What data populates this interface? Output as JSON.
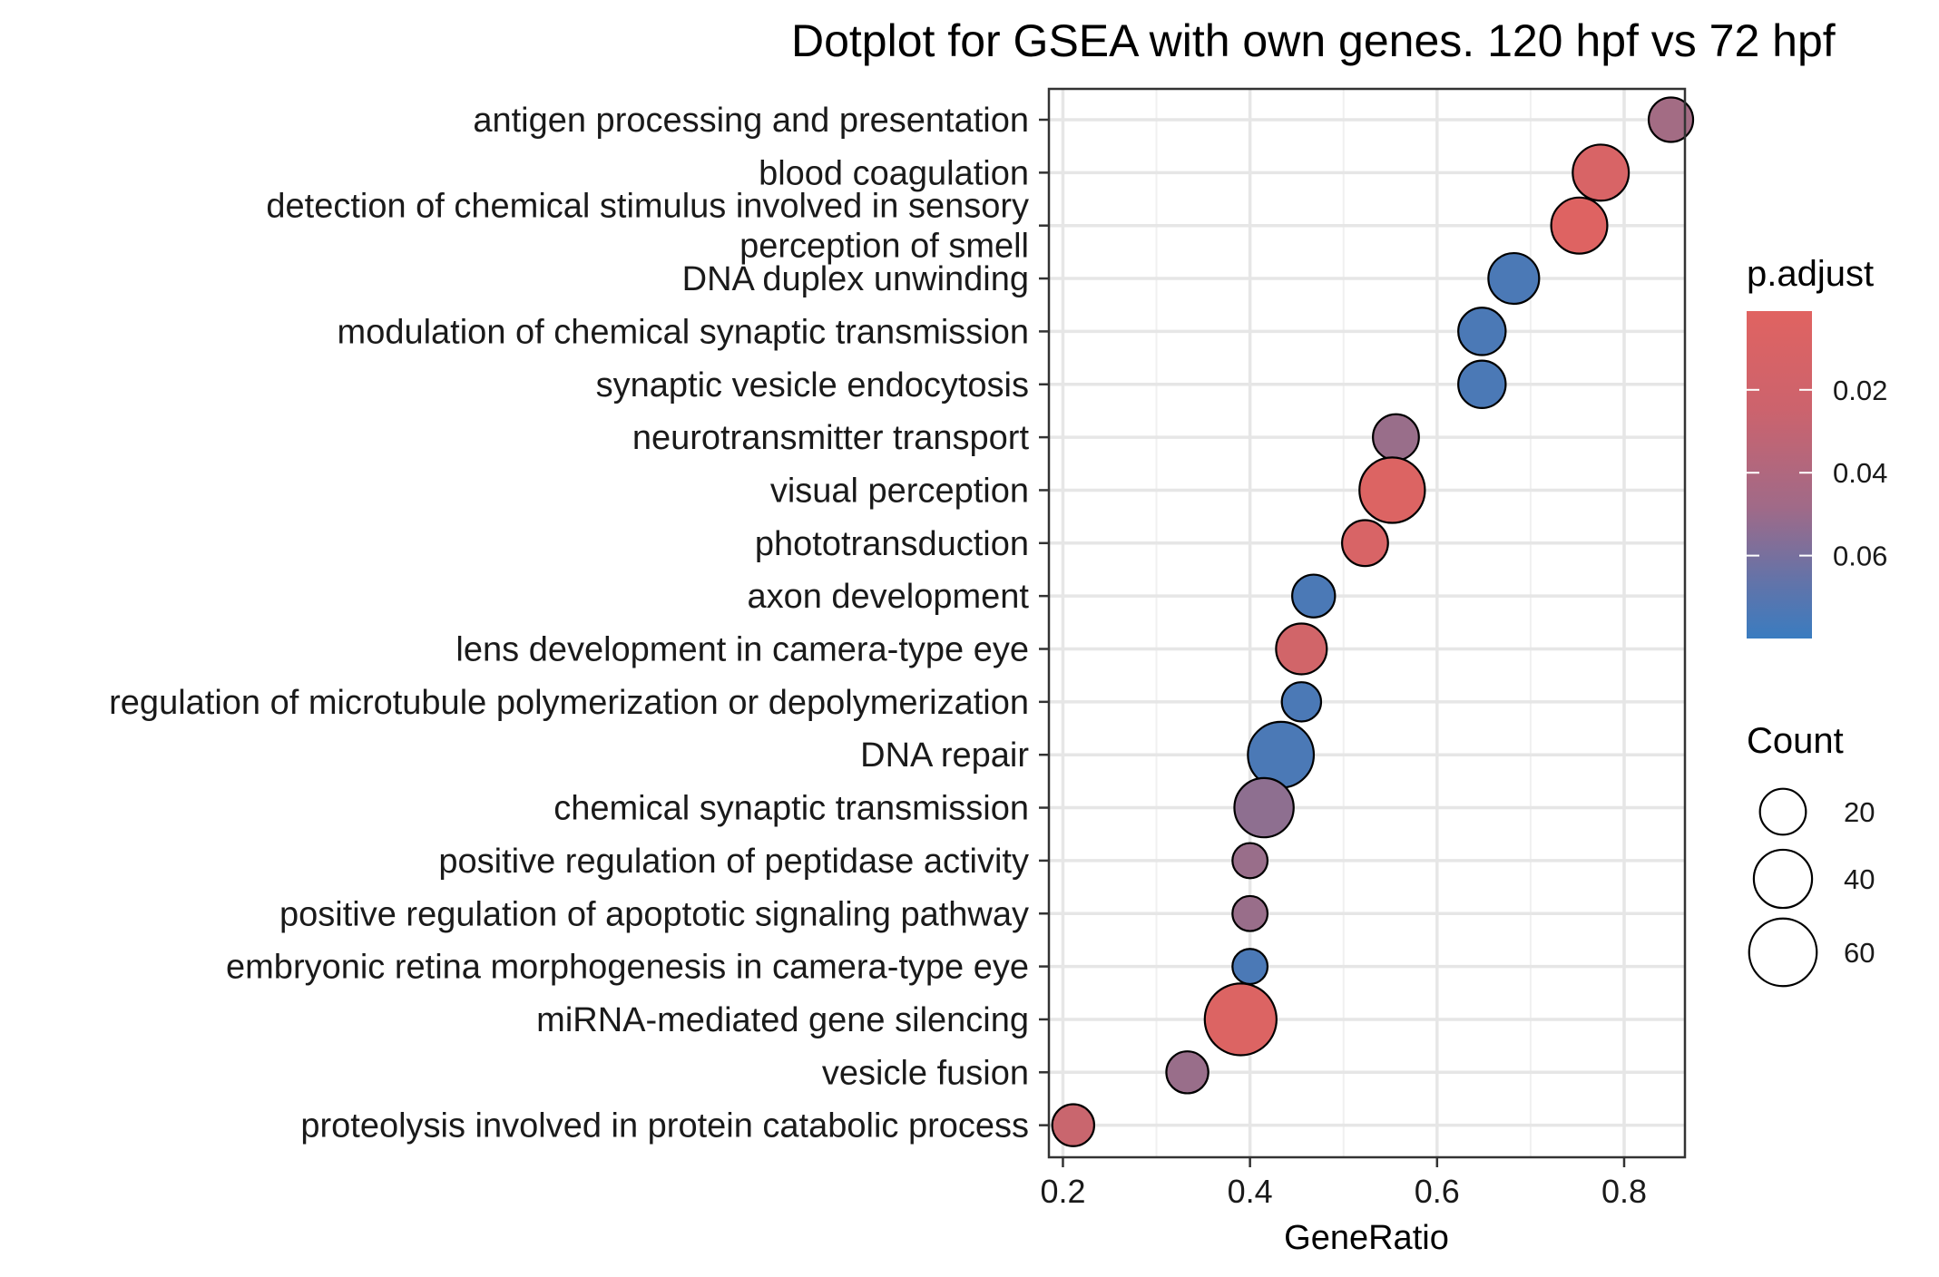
{
  "chart_data": {
    "type": "scatter",
    "title": "Dotplot for GSEA with own genes. 120 hpf vs 72 hpf",
    "xlabel": "GeneRatio",
    "ylabel": "",
    "xlim": [
      0.185,
      0.865
    ],
    "xticks": [
      "0.2",
      "0.4",
      "0.6",
      "0.8"
    ],
    "grid": true,
    "legend_position": "right",
    "colors": {
      "low_padj": "#E06361",
      "high_padj": "#3A7CC0"
    },
    "legend": {
      "color_title": "p.adjust",
      "color_ticks": [
        "0.02",
        "0.04",
        "0.06"
      ],
      "color_range": [
        0.001,
        0.08
      ],
      "size_title": "Count",
      "size_ticks": [
        "20",
        "40",
        "60"
      ]
    },
    "series": [
      {
        "points": [
          {
            "term": "antigen processing and presentation",
            "gene_ratio": 0.85,
            "count": 18,
            "p_adjust": 0.03
          },
          {
            "term": "blood coagulation",
            "gene_ratio": 0.775,
            "count": 36,
            "p_adjust": 0.005
          },
          {
            "term": "detection of chemical stimulus involved in sensory\nperception of smell",
            "gene_ratio": 0.752,
            "count": 36,
            "p_adjust": 0.002
          },
          {
            "term": "DNA duplex unwinding",
            "gene_ratio": 0.682,
            "count": 27,
            "p_adjust": 0.072
          },
          {
            "term": "modulation of chemical synaptic transmission",
            "gene_ratio": 0.648,
            "count": 22,
            "p_adjust": 0.072
          },
          {
            "term": "synaptic vesicle endocytosis",
            "gene_ratio": 0.648,
            "count": 22,
            "p_adjust": 0.072
          },
          {
            "term": "neurotransmitter transport",
            "gene_ratio": 0.556,
            "count": 20,
            "p_adjust": 0.035
          },
          {
            "term": "visual perception",
            "gene_ratio": 0.552,
            "count": 55,
            "p_adjust": 0.003
          },
          {
            "term": "phototransduction",
            "gene_ratio": 0.523,
            "count": 20,
            "p_adjust": 0.005
          },
          {
            "term": "axon development",
            "gene_ratio": 0.468,
            "count": 16,
            "p_adjust": 0.072
          },
          {
            "term": "lens development in camera-type eye",
            "gene_ratio": 0.455,
            "count": 27,
            "p_adjust": 0.008
          },
          {
            "term": "regulation of microtubule polymerization or depolymerization",
            "gene_ratio": 0.455,
            "count": 12,
            "p_adjust": 0.072
          },
          {
            "term": "DNA repair",
            "gene_ratio": 0.433,
            "count": 56,
            "p_adjust": 0.072
          },
          {
            "term": "chemical synaptic transmission",
            "gene_ratio": 0.415,
            "count": 42,
            "p_adjust": 0.04
          },
          {
            "term": "positive regulation of peptidase activity",
            "gene_ratio": 0.4,
            "count": 8,
            "p_adjust": 0.035
          },
          {
            "term": "positive regulation of apoptotic signaling pathway",
            "gene_ratio": 0.4,
            "count": 8,
            "p_adjust": 0.035
          },
          {
            "term": "embryonic retina morphogenesis in camera-type eye",
            "gene_ratio": 0.4,
            "count": 8,
            "p_adjust": 0.072
          },
          {
            "term": "miRNA-mediated gene silencing",
            "gene_ratio": 0.39,
            "count": 70,
            "p_adjust": 0.003
          },
          {
            "term": "vesicle fusion",
            "gene_ratio": 0.333,
            "count": 15,
            "p_adjust": 0.035
          },
          {
            "term": "proteolysis involved in protein catabolic process",
            "gene_ratio": 0.211,
            "count": 15,
            "p_adjust": 0.012
          }
        ]
      }
    ]
  }
}
